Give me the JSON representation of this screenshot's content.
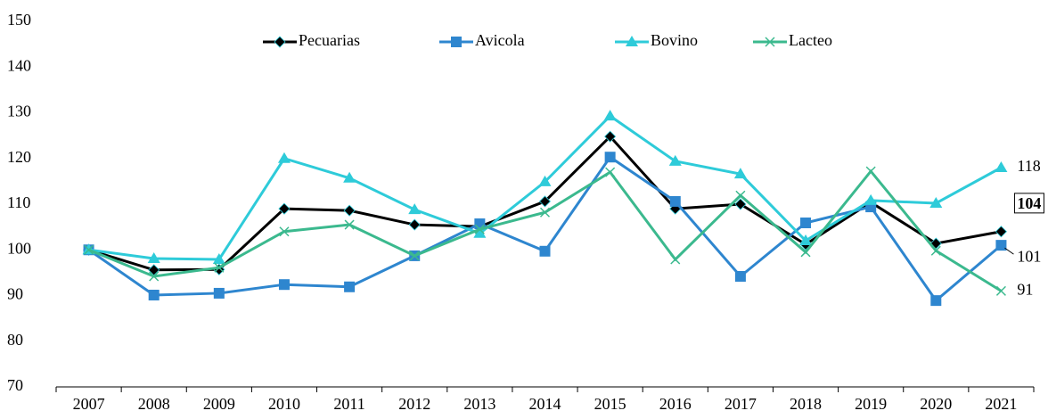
{
  "chart_data": {
    "type": "line",
    "categories": [
      "2007",
      "2008",
      "2009",
      "2010",
      "2011",
      "2012",
      "2013",
      "2014",
      "2015",
      "2016",
      "2017",
      "2018",
      "2019",
      "2020",
      "2021"
    ],
    "series": [
      {
        "name": "Pecuarias",
        "color": "#000000",
        "marker": "diamond",
        "values": [
          100,
          95.6,
          95.7,
          109,
          108.6,
          105.5,
          105.1,
          110.6,
          124.8,
          109,
          110,
          101.2,
          110.4,
          101.4,
          104
        ]
      },
      {
        "name": "Avicola",
        "color": "#2e86cf",
        "marker": "square",
        "values": [
          100,
          90.1,
          90.5,
          92.4,
          91.9,
          98.7,
          105.7,
          99.7,
          120.3,
          110.6,
          94.2,
          105.9,
          109.4,
          88.9,
          101
        ]
      },
      {
        "name": "Bovino",
        "color": "#2ecbd9",
        "marker": "triangle",
        "values": [
          100,
          98.1,
          97.9,
          120,
          115.7,
          108.8,
          103.6,
          114.9,
          129.3,
          119.4,
          116.6,
          102,
          110.8,
          110.2,
          118
        ]
      },
      {
        "name": "Lacteo",
        "color": "#3bb98e",
        "marker": "x",
        "values": [
          100,
          94.2,
          96.1,
          104,
          105.5,
          98.7,
          104.5,
          108.2,
          117,
          97.9,
          111.9,
          99.5,
          117.2,
          99.8,
          91
        ]
      }
    ],
    "ylim": [
      70,
      150
    ],
    "yticks": [
      70,
      80,
      90,
      100,
      110,
      120,
      130,
      140,
      150
    ],
    "grid": false,
    "legend": "top",
    "last_value_labels": true
  }
}
